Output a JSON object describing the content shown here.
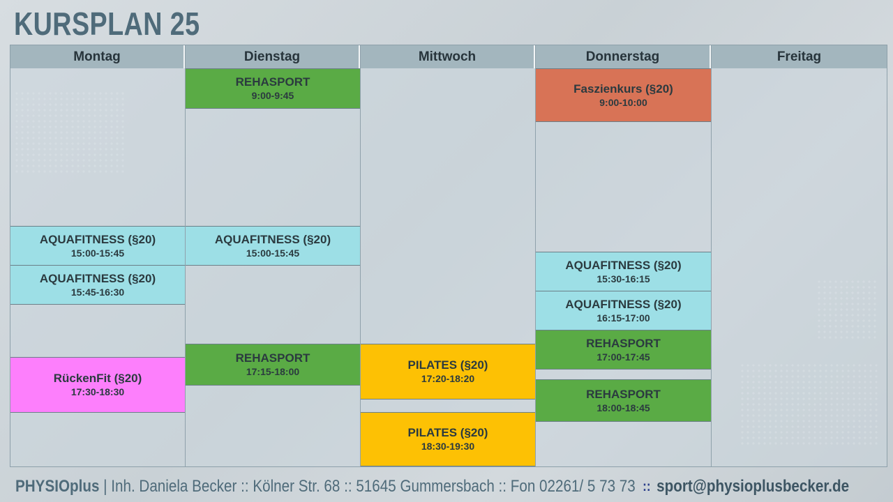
{
  "title": "KURSPLAN 25",
  "days": [
    "Montag",
    "Dienstag",
    "Mittwoch",
    "Donnerstag",
    "Freitag"
  ],
  "courses": {
    "mon_1": {
      "name": "AQUAFITNESS (§20)",
      "time": "15:00-15:45"
    },
    "mon_2": {
      "name": "AQUAFITNESS (§20)",
      "time": "15:45-16:30"
    },
    "mon_3": {
      "name": "RückenFit (§20)",
      "time": "17:30-18:30"
    },
    "tue_1": {
      "name": "REHASPORT",
      "time": "9:00-9:45"
    },
    "tue_2": {
      "name": "AQUAFITNESS (§20)",
      "time": "15:00-15:45"
    },
    "tue_3": {
      "name": "REHASPORT",
      "time": "17:15-18:00"
    },
    "wed_1": {
      "name": "PILATES (§20)",
      "time": "17:20-18:20"
    },
    "wed_2": {
      "name": "PILATES (§20)",
      "time": "18:30-19:30"
    },
    "thu_1": {
      "name": "Faszienkurs (§20)",
      "time": "9:00-10:00"
    },
    "thu_2": {
      "name": "AQUAFITNESS (§20)",
      "time": "15:30-16:15"
    },
    "thu_3": {
      "name": "AQUAFITNESS (§20)",
      "time": "16:15-17:00"
    },
    "thu_4": {
      "name": "REHASPORT",
      "time": "17:00-17:45"
    },
    "thu_5": {
      "name": "REHASPORT",
      "time": "18:00-18:45"
    }
  },
  "colors": {
    "rehasport": "#5aab45",
    "aquafitness": "#9ddfe6",
    "faszienkurs": "#d87356",
    "rueckenfit": "#fd7ffc",
    "pilates": "#fdc104",
    "title": "#4f6b7a",
    "header": "#a3b6be"
  },
  "footer": {
    "brand": "PHYSIOplus",
    "text": " | Inh. Daniela Becker :: Kölner Str. 68 :: 51645 Gummersbach :: Fon 02261/ 5 73 73",
    "separator": "::",
    "email": "sport@physioplusbecker.de"
  }
}
